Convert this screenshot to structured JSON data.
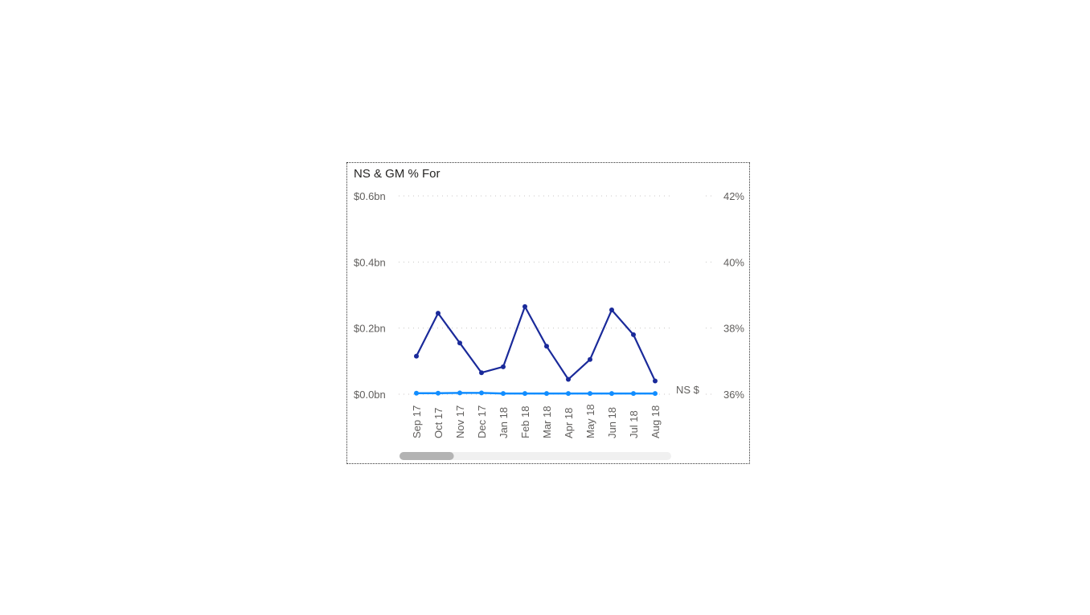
{
  "chart_data": {
    "type": "line",
    "title": "NS & GM % For",
    "categories": [
      "Sep 17",
      "Oct 17",
      "Nov 17",
      "Dec 17",
      "Jan 18",
      "Feb 18",
      "Mar 18",
      "Apr 18",
      "May 18",
      "Jun 18",
      "Jul 18",
      "Aug 18"
    ],
    "y_left": {
      "range_bn": [
        0,
        0.6
      ],
      "ticks": [
        0,
        0.2,
        0.4,
        0.6
      ],
      "tick_labels": [
        "$0.0bn",
        "$0.2bn",
        "$0.4bn",
        "$0.6bn"
      ]
    },
    "y_right": {
      "range_pct": [
        36,
        42
      ],
      "ticks": [
        36,
        38,
        40,
        42
      ],
      "tick_labels": [
        "36%",
        "38%",
        "40%",
        "42%"
      ]
    },
    "series": [
      {
        "name": "NS $",
        "axis": "left",
        "color": "#1a2a9a",
        "values_bn": [
          0.115,
          0.245,
          0.155,
          0.065,
          0.083,
          0.265,
          0.145,
          0.045,
          0.105,
          0.255,
          0.18,
          0.04
        ]
      },
      {
        "name": "",
        "axis": "left",
        "color": "#118dff",
        "values_bn": [
          0.003,
          0.003,
          0.004,
          0.004,
          0.002,
          0.002,
          0.002,
          0.002,
          0.002,
          0.002,
          0.002,
          0.002
        ]
      }
    ],
    "end_label": "NS $",
    "gridlines": true,
    "scrollbar": {
      "position_fraction": 0.0,
      "visible_fraction": 0.2
    }
  }
}
